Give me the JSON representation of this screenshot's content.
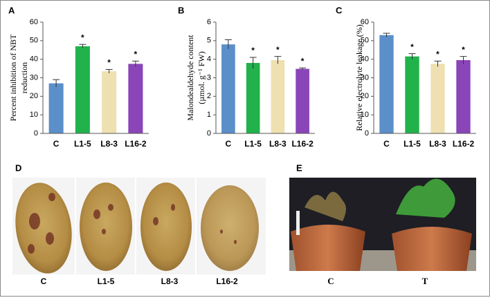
{
  "chart_data": [
    {
      "type": "bar",
      "label": "A",
      "ylabel": [
        "Percent inhibition of NBT",
        "reduction"
      ],
      "categories": [
        "C",
        "L1-5",
        "L8-3",
        "L16-2"
      ],
      "values": [
        27,
        47,
        33.5,
        37.5
      ],
      "errors": [
        2,
        1,
        1,
        1.5
      ],
      "colors": [
        "#5b8fc9",
        "#21b24b",
        "#eee0b0",
        "#8a45b8"
      ],
      "ylim": [
        0,
        60
      ],
      "yticks": [
        0,
        10,
        20,
        30,
        40,
        50,
        60
      ],
      "annotations": [
        {
          "text": "*",
          "category": "L1-5"
        },
        {
          "text": "*",
          "category": "L8-3"
        },
        {
          "text": "*",
          "category": "L16-2"
        }
      ]
    },
    {
      "type": "bar",
      "label": "B",
      "ylabel": [
        "Malondealdehyde content",
        "(µmol. g⁻¹ FW)"
      ],
      "categories": [
        "C",
        "L1-5",
        "L8-3",
        "L16-2"
      ],
      "values": [
        4.8,
        3.8,
        3.95,
        3.48
      ],
      "errors": [
        0.25,
        0.3,
        0.2,
        0.05
      ],
      "colors": [
        "#5b8fc9",
        "#21b24b",
        "#eee0b0",
        "#8a45b8"
      ],
      "ylim": [
        0,
        6
      ],
      "yticks": [
        0,
        1,
        2,
        3,
        4,
        5,
        6
      ],
      "annotations": [
        {
          "text": "*",
          "category": "L1-5"
        },
        {
          "text": "*",
          "category": "L8-3"
        },
        {
          "text": "*",
          "category": "L16-2"
        }
      ]
    },
    {
      "type": "bar",
      "label": "C",
      "ylabel": [
        "Relative electrolyte leakage (%)"
      ],
      "categories": [
        "C",
        "L1-5",
        "L8-3",
        "L16-2"
      ],
      "values": [
        53,
        41.5,
        37.5,
        39.5
      ],
      "errors": [
        1,
        1.5,
        1.5,
        2
      ],
      "colors": [
        "#5b8fc9",
        "#21b24b",
        "#eee0b0",
        "#8a45b8"
      ],
      "ylim": [
        0,
        60
      ],
      "yticks": [
        0,
        10,
        20,
        30,
        40,
        50,
        60
      ],
      "annotations": [
        {
          "text": "*",
          "category": "L1-5"
        },
        {
          "text": "*",
          "category": "L8-3"
        },
        {
          "text": "*",
          "category": "L16-2"
        }
      ]
    }
  ],
  "panels": [
    {
      "label": "D",
      "captions": [
        "C",
        "L1-5",
        "L8-3",
        "L16-2"
      ]
    },
    {
      "label": "E",
      "captions": [
        "C",
        "T"
      ]
    }
  ]
}
